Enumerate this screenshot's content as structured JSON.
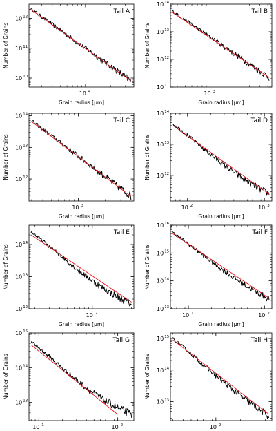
{
  "chart_data": [
    {
      "type": "line",
      "title": "Tail A",
      "xlabel": "Grain radius [µm]",
      "ylabel": "Number of Grains",
      "xscale": "log",
      "yscale": "log",
      "xlim": [
        2100,
        38000
      ],
      "ylim": [
        5000000000.0,
        3000000000000.0
      ],
      "xticks": [
        {
          "v": 10000,
          "b": "10",
          "e": "4"
        }
      ],
      "yticks": [
        {
          "v": 10000000000.0,
          "b": "10",
          "e": "10"
        },
        {
          "v": 100000000000.0,
          "b": "10",
          "e": "11"
        },
        {
          "v": 1000000000000.0,
          "b": "10",
          "e": "12"
        }
      ],
      "series": [
        {
          "color": "#000000",
          "values": [
            [
              2200,
              2100000000000.0
            ],
            [
              35000,
              8000000000.0
            ]
          ],
          "noise": true
        },
        {
          "color": "#e8141b",
          "values": [
            [
              2200,
              2000000000000.0
            ],
            [
              35000,
              8000000000.0
            ]
          ]
        }
      ]
    },
    {
      "type": "line",
      "title": "Tail B",
      "xlabel": "Grain radius [µm]",
      "ylabel": "Number of Grains",
      "xscale": "log",
      "yscale": "log",
      "xlim": [
        330,
        5600
      ],
      "ylim": [
        100000000000.0,
        100000000000000.0
      ],
      "xticks": [
        {
          "v": 1000,
          "b": "10",
          "e": "3"
        }
      ],
      "yticks": [
        {
          "v": 100000000000.0,
          "b": "10",
          "e": "11"
        },
        {
          "v": 1000000000000.0,
          "b": "10",
          "e": "12"
        },
        {
          "v": 10000000000000.0,
          "b": "10",
          "e": "13"
        },
        {
          "v": 100000000000000.0,
          "b": "10",
          "e": "14"
        }
      ],
      "series": [
        {
          "color": "#000000",
          "values": [
            [
              350,
              55000000000000.0
            ],
            [
              5200,
              220000000000.0
            ]
          ],
          "noise": true
        },
        {
          "color": "#e8141b",
          "values": [
            [
              350,
              50000000000000.0
            ],
            [
              5200,
              220000000000.0
            ]
          ]
        }
      ]
    },
    {
      "type": "line",
      "title": "Tail C",
      "xlabel": "Grain radius [µm]",
      "ylabel": "Number of Grains",
      "xscale": "log",
      "yscale": "log",
      "xlim": [
        280,
        4200
      ],
      "ylim": [
        200000000000.0,
        120000000000000.0
      ],
      "xticks": [
        {
          "v": 1000,
          "b": "10",
          "e": "3"
        }
      ],
      "yticks": [
        {
          "v": 1000000000000.0,
          "b": "10",
          "e": "12"
        },
        {
          "v": 10000000000000.0,
          "b": "10",
          "e": "13"
        },
        {
          "v": 100000000000000.0,
          "b": "10",
          "e": "14"
        }
      ],
      "series": [
        {
          "color": "#000000",
          "values": [
            [
              300,
              70000000000000.0
            ],
            [
              3900,
              280000000000.0
            ]
          ],
          "noise": true
        },
        {
          "color": "#e8141b",
          "values": [
            [
              300,
              65000000000000.0
            ],
            [
              3900,
              280000000000.0
            ]
          ]
        }
      ]
    },
    {
      "type": "line",
      "title": "Tail D",
      "xlabel": "Grain radius [µm]",
      "ylabel": "Number of Grains",
      "xscale": "log",
      "yscale": "log",
      "xlim": [
        60,
        1250
      ],
      "ylim": [
        150000000000.0,
        100000000000000.0
      ],
      "xticks": [
        {
          "v": 100,
          "b": "10",
          "e": "2"
        },
        {
          "v": 1000,
          "b": "10",
          "e": "3"
        }
      ],
      "yticks": [
        {
          "v": 1000000000000.0,
          "b": "10",
          "e": "12"
        },
        {
          "v": 10000000000000.0,
          "b": "10",
          "e": "13"
        },
        {
          "v": 100000000000000.0,
          "b": "10",
          "e": "14"
        }
      ],
      "series": [
        {
          "color": "#000000",
          "values": [
            [
              65,
              45000000000000.0
            ],
            [
              1150,
              250000000000.0
            ]
          ],
          "noise": true,
          "sag": 0.18
        },
        {
          "color": "#e8141b",
          "values": [
            [
              65,
              40000000000000.0
            ],
            [
              1150,
              250000000000.0
            ]
          ]
        }
      ]
    },
    {
      "type": "line",
      "title": "Tail E",
      "xlabel": "Grain radius [µm]",
      "ylabel": "Number of Grains",
      "xscale": "log",
      "yscale": "log",
      "xlim": [
        17,
        320
      ],
      "ylim": [
        1000000000000.0,
        400000000000000.0
      ],
      "xticks": [
        {
          "v": 100,
          "b": "10",
          "e": "2"
        }
      ],
      "yticks": [
        {
          "v": 1000000000000.0,
          "b": "10",
          "e": "12"
        },
        {
          "v": 10000000000000.0,
          "b": "10",
          "e": "13"
        },
        {
          "v": 100000000000000.0,
          "b": "10",
          "e": "14"
        }
      ],
      "series": [
        {
          "color": "#000000",
          "values": [
            [
              18,
              250000000000000.0
            ],
            [
              300,
              1400000000000.0
            ]
          ],
          "noise": true,
          "sag": 0.22
        },
        {
          "color": "#e8141b",
          "values": [
            [
              18,
              200000000000000.0
            ],
            [
              300,
              1600000000000.0
            ]
          ]
        }
      ]
    },
    {
      "type": "line",
      "title": "Tail F",
      "xlabel": "Grain radius [µm]",
      "ylabel": "Number of Grains",
      "xscale": "log",
      "yscale": "log",
      "xlim": [
        5.8,
        125
      ],
      "ylim": [
        10000000000000.0,
        1e+16
      ],
      "xticks": [
        {
          "v": 10,
          "b": "10",
          "e": "1"
        },
        {
          "v": 100,
          "b": "10",
          "e": "2"
        }
      ],
      "yticks": [
        {
          "v": 10000000000000.0,
          "b": "10",
          "e": "13"
        },
        {
          "v": 100000000000000.0,
          "b": "10",
          "e": "14"
        },
        {
          "v": 1000000000000000.0,
          "b": "10",
          "e": "15"
        },
        {
          "v": 1e+16,
          "b": "10",
          "e": "16"
        }
      ],
      "series": [
        {
          "color": "#000000",
          "values": [
            [
              6.2,
              5500000000000000.0
            ],
            [
              115,
              22000000000000.0
            ]
          ],
          "noise": true,
          "sag": 0.15
        },
        {
          "color": "#e8141b",
          "values": [
            [
              6.2,
              5000000000000000.0
            ],
            [
              115,
              24000000000000.0
            ]
          ]
        }
      ]
    },
    {
      "type": "line",
      "title": "Tail G",
      "xlabel": "Grain radius [µm]",
      "ylabel": "Number of Grains",
      "xscale": "log",
      "yscale": "log",
      "xlim": [
        7.5,
        160
      ],
      "ylim": [
        3000000000000.0,
        1000000000000000.0
      ],
      "xticks": [
        {
          "v": 10,
          "b": "10",
          "e": "1"
        },
        {
          "v": 100,
          "b": "10",
          "e": "2"
        }
      ],
      "yticks": [
        {
          "v": 10000000000000.0,
          "b": "10",
          "e": "13"
        },
        {
          "v": 100000000000000.0,
          "b": "10",
          "e": "14"
        },
        {
          "v": 1000000000000000.0,
          "b": "10",
          "e": "15"
        }
      ],
      "series": [
        {
          "color": "#000000",
          "values": [
            [
              8,
              550000000000000.0
            ],
            [
              150,
              4500000000000.0
            ]
          ],
          "noise": true,
          "sag": 0.25
        },
        {
          "color": "#e8141b",
          "values": [
            [
              8,
              450000000000000.0
            ],
            [
              100,
              4500000000000.0
            ]
          ]
        }
      ]
    },
    {
      "type": "line",
      "title": "Tail H",
      "xlabel": "Grain radius [µm]",
      "ylabel": "Number of Grains",
      "xscale": "log",
      "yscale": "log",
      "xlim": [
        28,
        480
      ],
      "ylim": [
        2500000000000.0,
        1500000000000000.0
      ],
      "xticks": [
        {
          "v": 100,
          "b": "10",
          "e": "2"
        }
      ],
      "yticks": [
        {
          "v": 10000000000000.0,
          "b": "10",
          "e": "13"
        },
        {
          "v": 100000000000000.0,
          "b": "10",
          "e": "14"
        },
        {
          "v": 1000000000000000.0,
          "b": "10",
          "e": "15"
        }
      ],
      "series": [
        {
          "color": "#000000",
          "values": [
            [
              30,
              1000000000000000.0
            ],
            [
              440,
              3500000000000.0
            ]
          ],
          "noise": true,
          "sag": 0.12
        },
        {
          "color": "#e8141b",
          "values": [
            [
              30,
              900000000000000.0
            ],
            [
              440,
              4000000000000.0
            ]
          ]
        }
      ]
    }
  ]
}
